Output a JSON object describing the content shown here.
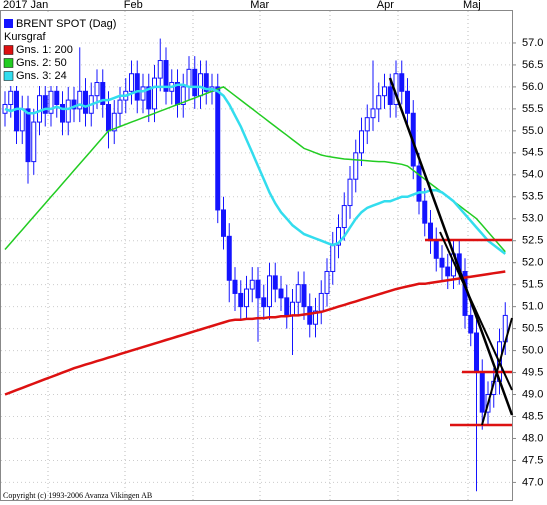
{
  "chart_data": {
    "type": "candlestick",
    "categories": [
      "2017 Jan",
      null,
      null,
      null,
      null,
      null,
      null,
      null,
      null,
      null,
      null,
      null,
      null,
      null,
      null,
      null,
      null,
      null,
      null,
      null,
      null,
      "Feb",
      null,
      null,
      null,
      null,
      null,
      null,
      null,
      null,
      null,
      null,
      null,
      null,
      null,
      null,
      null,
      null,
      null,
      null,
      null,
      null,
      null,
      "Mar",
      null,
      null,
      null,
      null,
      null,
      null,
      null,
      null,
      null,
      null,
      null,
      null,
      null,
      null,
      null,
      null,
      null,
      null,
      null,
      null,
      null,
      "Apr",
      null,
      null,
      null,
      null,
      null,
      null,
      null,
      null,
      null,
      null,
      null,
      null,
      null,
      null,
      "Maj",
      null,
      null,
      null,
      null,
      null,
      null,
      null
    ],
    "candles": {
      "name": "BRENT SPOT (Dag)",
      "color": "#1414ff",
      "open": [
        55.4,
        55.6,
        55.9,
        55.0,
        55.5,
        54.3,
        55.2,
        55.8,
        55.4,
        55.9,
        55.6,
        55.2,
        55.7,
        55.5,
        55.9,
        55.4,
        55.8,
        56.1,
        55.6,
        55.0,
        55.4,
        55.7,
        55.9,
        56.3,
        55.7,
        56.0,
        55.5,
        56.2,
        56.6,
        55.9,
        56.1,
        55.6,
        56.0,
        56.4,
        55.8,
        56.3,
        55.9,
        56.0,
        53.2,
        52.6,
        51.6,
        51.3,
        51.0,
        51.4,
        51.6,
        51.2,
        51.0,
        51.7,
        51.4,
        51.2,
        50.8,
        51.1,
        51.5,
        51.0,
        50.6,
        50.9,
        51.3,
        51.8,
        52.4,
        52.8,
        53.3,
        53.9,
        54.5,
        55.0,
        55.3,
        55.5,
        55.8,
        56.0,
        55.6,
        56.3,
        55.9,
        55.4,
        54.2,
        53.4,
        52.9,
        52.5,
        52.1,
        51.9,
        51.7,
        52.2,
        51.8,
        50.8,
        50.4,
        49.5,
        48.6,
        49.0,
        49.3,
        50.2
      ],
      "high": [
        55.9,
        56.2,
        56.2,
        55.8,
        55.8,
        55.5,
        56.1,
        56.1,
        56.2,
        56.2,
        55.9,
        56.0,
        56.0,
        56.9,
        56.2,
        56.1,
        56.4,
        56.4,
        55.9,
        55.7,
        56.0,
        56.2,
        56.6,
        56.6,
        56.3,
        56.3,
        56.5,
        57.1,
        56.9,
        56.4,
        56.4,
        56.3,
        56.7,
        56.7,
        56.6,
        56.6,
        56.3,
        56.3,
        53.5,
        52.9,
        51.9,
        51.6,
        51.7,
        51.9,
        51.9,
        51.5,
        52.0,
        52.0,
        51.7,
        51.5,
        51.4,
        51.8,
        51.8,
        51.3,
        51.2,
        51.6,
        52.1,
        52.7,
        53.1,
        53.6,
        54.2,
        54.8,
        55.3,
        55.6,
        56.6,
        56.1,
        56.3,
        56.3,
        56.6,
        56.6,
        56.2,
        55.7,
        54.5,
        53.7,
        53.2,
        52.8,
        52.4,
        52.2,
        52.5,
        52.5,
        52.1,
        51.1,
        50.7,
        49.8,
        49.3,
        49.6,
        50.5,
        51.1
      ],
      "low": [
        55.1,
        55.3,
        54.7,
        54.7,
        53.8,
        54.0,
        54.9,
        55.1,
        55.1,
        55.3,
        54.9,
        54.9,
        55.2,
        55.2,
        55.1,
        55.1,
        55.5,
        55.3,
        54.6,
        54.7,
        55.1,
        55.4,
        55.6,
        55.4,
        55.4,
        55.2,
        55.2,
        55.9,
        55.6,
        55.6,
        55.3,
        55.3,
        55.7,
        55.5,
        55.5,
        55.6,
        55.6,
        52.9,
        52.3,
        51.1,
        50.9,
        50.7,
        50.7,
        51.1,
        50.2,
        50.7,
        50.7,
        51.1,
        50.9,
        50.5,
        49.9,
        50.8,
        50.7,
        50.3,
        50.3,
        50.6,
        51.0,
        51.5,
        52.1,
        52.5,
        53.0,
        53.6,
        54.2,
        54.7,
        55.0,
        55.2,
        55.5,
        55.3,
        55.3,
        55.6,
        55.1,
        53.9,
        53.1,
        52.6,
        52.2,
        51.8,
        51.6,
        51.4,
        51.4,
        51.5,
        50.5,
        50.1,
        46.8,
        48.2,
        48.3,
        48.7,
        49.0,
        49.9
      ],
      "close": [
        55.6,
        55.9,
        55.0,
        55.5,
        54.3,
        55.2,
        55.8,
        55.4,
        55.9,
        55.6,
        55.2,
        55.7,
        55.5,
        55.9,
        55.4,
        55.8,
        56.1,
        55.6,
        55.0,
        55.4,
        55.7,
        55.9,
        56.3,
        55.7,
        56.0,
        55.5,
        56.2,
        56.6,
        55.9,
        56.1,
        55.6,
        56.0,
        56.4,
        55.8,
        56.3,
        55.9,
        56.0,
        53.2,
        52.6,
        51.6,
        51.3,
        51.0,
        51.4,
        51.6,
        51.2,
        51.0,
        51.7,
        51.4,
        51.2,
        50.8,
        51.1,
        51.5,
        51.0,
        50.6,
        50.9,
        51.3,
        51.8,
        52.4,
        52.8,
        53.3,
        53.9,
        54.5,
        55.0,
        55.3,
        55.5,
        55.8,
        56.0,
        55.6,
        56.3,
        55.9,
        55.4,
        54.2,
        53.4,
        52.9,
        52.5,
        52.1,
        51.9,
        51.7,
        52.2,
        51.8,
        50.8,
        50.4,
        49.5,
        48.6,
        49.0,
        49.3,
        50.2,
        50.8
      ]
    },
    "legend_title": "Kursgraf",
    "series": [
      {
        "name": "Gns. 1: 200",
        "color": "#dd1111",
        "values": [
          49.0,
          49.05,
          49.1,
          49.15,
          49.2,
          49.25,
          49.3,
          49.35,
          49.4,
          49.45,
          49.5,
          49.55,
          49.6,
          49.64,
          49.68,
          49.72,
          49.76,
          49.8,
          49.84,
          49.88,
          49.92,
          49.96,
          50.0,
          50.04,
          50.08,
          50.12,
          50.16,
          50.2,
          50.24,
          50.28,
          50.32,
          50.36,
          50.4,
          50.44,
          50.48,
          50.52,
          50.56,
          50.6,
          50.64,
          50.68,
          50.7,
          50.7,
          50.72,
          50.72,
          50.74,
          50.74,
          50.76,
          50.76,
          50.78,
          50.78,
          50.8,
          50.8,
          50.82,
          50.84,
          50.86,
          50.88,
          50.92,
          50.96,
          51.0,
          51.04,
          51.08,
          51.12,
          51.16,
          51.2,
          51.24,
          51.28,
          51.32,
          51.36,
          51.4,
          51.43,
          51.46,
          51.49,
          51.52,
          51.52,
          51.54,
          51.56,
          51.58,
          51.6,
          51.62,
          51.64,
          51.66,
          51.68,
          51.7,
          51.72,
          51.74,
          51.76,
          51.78,
          51.8
        ]
      },
      {
        "name": "Gns. 2: 50",
        "color": "#22cc22",
        "values": [
          52.3,
          52.45,
          52.6,
          52.75,
          52.9,
          53.05,
          53.2,
          53.35,
          53.5,
          53.65,
          53.8,
          53.95,
          54.1,
          54.25,
          54.4,
          54.55,
          54.7,
          54.85,
          55.0,
          55.05,
          55.1,
          55.15,
          55.2,
          55.25,
          55.3,
          55.35,
          55.4,
          55.45,
          55.5,
          55.55,
          55.6,
          55.65,
          55.7,
          55.75,
          55.8,
          55.85,
          55.9,
          55.95,
          56.0,
          55.9,
          55.8,
          55.7,
          55.6,
          55.5,
          55.4,
          55.3,
          55.2,
          55.1,
          55.0,
          54.9,
          54.8,
          54.7,
          54.6,
          54.55,
          54.5,
          54.45,
          54.42,
          54.4,
          54.38,
          54.36,
          54.35,
          54.34,
          54.33,
          54.32,
          54.31,
          54.3,
          54.3,
          54.28,
          54.26,
          54.24,
          54.2,
          54.1,
          54.0,
          53.9,
          53.8,
          53.7,
          53.6,
          53.5,
          53.4,
          53.3,
          53.2,
          53.1,
          53.0,
          52.85,
          52.7,
          52.55,
          52.4,
          52.25
        ]
      },
      {
        "name": "Gns. 3: 24",
        "color": "#33ddee",
        "values": [
          55.5,
          55.45,
          55.5,
          55.5,
          55.4,
          55.4,
          55.45,
          55.5,
          55.5,
          55.55,
          55.5,
          55.5,
          55.55,
          55.6,
          55.55,
          55.6,
          55.65,
          55.7,
          55.7,
          55.75,
          55.8,
          55.8,
          55.85,
          55.9,
          55.9,
          55.95,
          56.0,
          56.0,
          56.0,
          56.0,
          56.05,
          56.05,
          56.0,
          56.0,
          56.0,
          55.95,
          55.95,
          55.9,
          55.8,
          55.6,
          55.35,
          55.1,
          54.8,
          54.5,
          54.2,
          53.9,
          53.6,
          53.35,
          53.15,
          53.0,
          52.85,
          52.75,
          52.65,
          52.6,
          52.55,
          52.5,
          52.45,
          52.4,
          52.45,
          52.6,
          52.8,
          53.0,
          53.15,
          53.25,
          53.3,
          53.35,
          53.4,
          53.4,
          53.45,
          53.5,
          53.5,
          53.55,
          53.6,
          53.6,
          53.65,
          53.65,
          53.6,
          53.5,
          53.4,
          53.25,
          53.1,
          52.95,
          52.8,
          52.65,
          52.5,
          52.4,
          52.3,
          52.2
        ]
      }
    ],
    "ylim": [
      46.6,
      57.75
    ],
    "yticks": [
      {
        "value": 47,
        "label": "47.0"
      },
      47.5,
      {
        "value": 48,
        "label": "48.0"
      },
      48.5,
      {
        "value": 49,
        "label": "49.0"
      },
      49.5,
      {
        "value": 50,
        "label": "50.0"
      },
      50.5,
      {
        "value": 51,
        "label": "51.0"
      },
      51.5,
      {
        "value": 52,
        "label": "52.0"
      },
      52.5,
      {
        "value": 53,
        "label": "53.0"
      },
      53.5,
      {
        "value": 54,
        "label": "54.0"
      },
      54.5,
      {
        "value": 55,
        "label": "55.0"
      },
      55.5,
      {
        "value": 56,
        "label": "56.0"
      },
      56.5,
      {
        "value": 57,
        "label": "57.0"
      }
    ],
    "grid": true,
    "legend": "top-left",
    "footer": "Copyright (c) 1993-2006 Avanza Vikingen AB"
  }
}
